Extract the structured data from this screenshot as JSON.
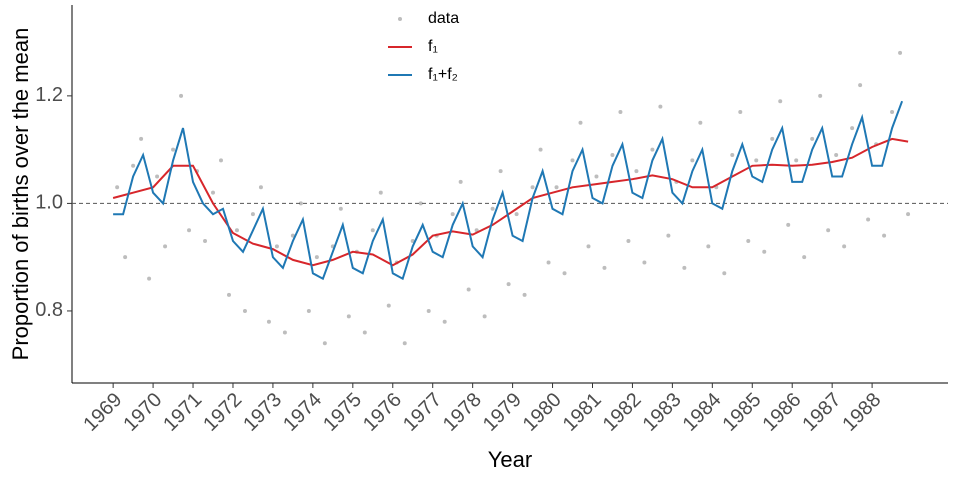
{
  "chart_data": {
    "type": "line",
    "xlabel": "Year",
    "ylabel": "Proportion of births over the mean",
    "xlim": [
      1967.97,
      1989.9
    ],
    "ylim": [
      0.666,
      1.369
    ],
    "xticks": [
      1969,
      1970,
      1971,
      1972,
      1973,
      1974,
      1975,
      1976,
      1977,
      1978,
      1979,
      1980,
      1981,
      1982,
      1983,
      1984,
      1985,
      1986,
      1987,
      1988
    ],
    "yticks": [
      0.8,
      {
        "value": 1,
        "label": "1.0"
      },
      1.2
    ],
    "hline": 1,
    "legend": "top",
    "series": [
      {
        "name": "data",
        "type": "scatter",
        "color": "#bdbdbd",
        "x": [
          1969.1,
          1969.3,
          1969.5,
          1969.7,
          1969.9,
          1970.1,
          1970.3,
          1970.5,
          1970.7,
          1970.9,
          1971.1,
          1971.3,
          1971.5,
          1971.7,
          1971.9,
          1972.1,
          1972.3,
          1972.5,
          1972.7,
          1972.9,
          1973.1,
          1973.3,
          1973.5,
          1973.7,
          1973.9,
          1974.1,
          1974.3,
          1974.5,
          1974.7,
          1974.9,
          1975.1,
          1975.3,
          1975.5,
          1975.7,
          1975.9,
          1976.1,
          1976.3,
          1976.5,
          1976.7,
          1976.9,
          1977.1,
          1977.3,
          1977.5,
          1977.7,
          1977.9,
          1978.1,
          1978.3,
          1978.5,
          1978.7,
          1978.9,
          1979.1,
          1979.3,
          1979.5,
          1979.7,
          1979.9,
          1980.1,
          1980.3,
          1980.5,
          1980.7,
          1980.9,
          1981.1,
          1981.3,
          1981.5,
          1981.7,
          1981.9,
          1982.1,
          1982.3,
          1982.5,
          1982.7,
          1982.9,
          1983.1,
          1983.3,
          1983.5,
          1983.7,
          1983.9,
          1984.1,
          1984.3,
          1984.5,
          1984.7,
          1984.9,
          1985.1,
          1985.3,
          1985.5,
          1985.7,
          1985.9,
          1986.1,
          1986.3,
          1986.5,
          1986.7,
          1986.9,
          1987.1,
          1987.3,
          1987.5,
          1987.7,
          1987.9,
          1988.1,
          1988.3,
          1988.5,
          1988.7,
          1988.9
        ],
        "values": [
          1.03,
          0.9,
          1.07,
          1.12,
          0.86,
          1.05,
          0.92,
          1.1,
          1.2,
          0.95,
          1.06,
          0.93,
          1.02,
          1.08,
          0.83,
          0.95,
          0.8,
          0.98,
          1.03,
          0.78,
          0.92,
          0.76,
          0.94,
          1.0,
          0.8,
          0.9,
          0.74,
          0.92,
          0.99,
          0.79,
          0.91,
          0.76,
          0.95,
          1.02,
          0.81,
          0.89,
          0.74,
          0.93,
          1.0,
          0.8,
          0.94,
          0.78,
          0.98,
          1.04,
          0.84,
          0.95,
          0.79,
          0.99,
          1.06,
          0.85,
          0.98,
          0.83,
          1.03,
          1.1,
          0.89,
          1.03,
          0.87,
          1.08,
          1.15,
          0.92,
          1.05,
          0.88,
          1.09,
          1.17,
          0.93,
          1.06,
          0.89,
          1.1,
          1.18,
          0.94,
          1.04,
          0.88,
          1.08,
          1.15,
          0.92,
          1.03,
          0.87,
          1.09,
          1.17,
          0.93,
          1.08,
          0.91,
          1.12,
          1.19,
          0.96,
          1.08,
          0.9,
          1.12,
          1.2,
          0.95,
          1.09,
          0.92,
          1.14,
          1.22,
          0.97,
          1.11,
          0.94,
          1.17,
          1.28,
          0.98
        ]
      },
      {
        "name": "f₁",
        "type": "line",
        "color": "#d7262b",
        "x": [
          1969,
          1969.5,
          1970,
          1970.5,
          1971,
          1971.5,
          1972,
          1972.5,
          1973,
          1973.5,
          1974,
          1974.5,
          1975,
          1975.5,
          1976,
          1976.5,
          1977,
          1977.5,
          1978,
          1978.5,
          1979,
          1979.5,
          1980,
          1980.5,
          1981,
          1981.5,
          1982,
          1982.5,
          1983,
          1983.5,
          1984,
          1984.5,
          1985,
          1985.5,
          1986,
          1986.5,
          1987,
          1987.5,
          1988,
          1988.5,
          1988.9
        ],
        "values": [
          1.01,
          1.02,
          1.03,
          1.07,
          1.07,
          1.0,
          0.945,
          0.925,
          0.915,
          0.895,
          0.885,
          0.895,
          0.91,
          0.905,
          0.885,
          0.905,
          0.94,
          0.948,
          0.942,
          0.96,
          0.985,
          1.01,
          1.02,
          1.03,
          1.035,
          1.04,
          1.045,
          1.052,
          1.045,
          1.03,
          1.03,
          1.05,
          1.07,
          1.072,
          1.07,
          1.072,
          1.077,
          1.085,
          1.105,
          1.12,
          1.115
        ]
      },
      {
        "name": "f₁+f₂",
        "type": "line",
        "color": "#1f78b4",
        "x": [
          1969,
          1969.25,
          1969.5,
          1969.75,
          1970,
          1970.25,
          1970.5,
          1970.75,
          1971,
          1971.25,
          1971.5,
          1971.75,
          1972,
          1972.25,
          1972.5,
          1972.75,
          1973,
          1973.25,
          1973.5,
          1973.75,
          1974,
          1974.25,
          1974.5,
          1974.75,
          1975,
          1975.25,
          1975.5,
          1975.75,
          1976,
          1976.25,
          1976.5,
          1976.75,
          1977,
          1977.25,
          1977.5,
          1977.75,
          1978,
          1978.25,
          1978.5,
          1978.75,
          1979,
          1979.25,
          1979.5,
          1979.75,
          1980,
          1980.25,
          1980.5,
          1980.75,
          1981,
          1981.25,
          1981.5,
          1981.75,
          1982,
          1982.25,
          1982.5,
          1982.75,
          1983,
          1983.25,
          1983.5,
          1983.75,
          1984,
          1984.25,
          1984.5,
          1984.75,
          1985,
          1985.25,
          1985.5,
          1985.75,
          1986,
          1986.25,
          1986.5,
          1986.75,
          1987,
          1987.25,
          1987.5,
          1987.75,
          1988,
          1988.25,
          1988.5,
          1988.75
        ],
        "values": [
          0.98,
          0.98,
          1.05,
          1.09,
          1.02,
          1.0,
          1.08,
          1.14,
          1.04,
          1.0,
          0.98,
          0.99,
          0.93,
          0.91,
          0.95,
          0.99,
          0.9,
          0.88,
          0.93,
          0.97,
          0.87,
          0.86,
          0.91,
          0.96,
          0.88,
          0.87,
          0.93,
          0.97,
          0.87,
          0.86,
          0.92,
          0.96,
          0.91,
          0.9,
          0.96,
          1.0,
          0.92,
          0.9,
          0.97,
          1.02,
          0.94,
          0.93,
          1.01,
          1.06,
          0.99,
          0.98,
          1.06,
          1.1,
          1.01,
          1.0,
          1.07,
          1.11,
          1.02,
          1.01,
          1.08,
          1.12,
          1.02,
          1.0,
          1.06,
          1.1,
          1.0,
          0.99,
          1.06,
          1.11,
          1.05,
          1.04,
          1.1,
          1.14,
          1.04,
          1.04,
          1.1,
          1.14,
          1.05,
          1.05,
          1.11,
          1.16,
          1.07,
          1.07,
          1.14,
          1.19
        ]
      }
    ]
  }
}
